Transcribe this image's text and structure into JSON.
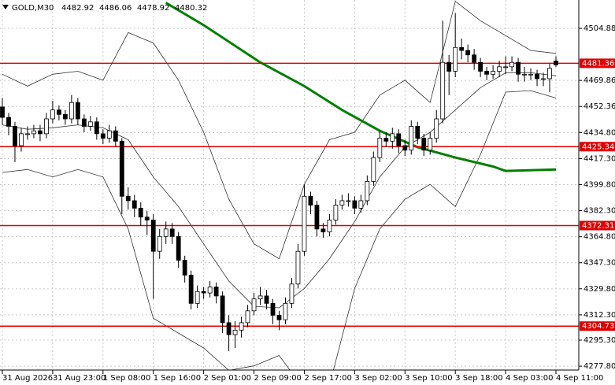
{
  "chart_data": {
    "type": "candlestick",
    "symbol": "GOLD,M30",
    "categories": [
      "31 Aug 2026",
      null,
      null,
      null,
      null,
      null,
      null,
      null,
      "31 Aug 23:00",
      null,
      null,
      null,
      null,
      null,
      null,
      null,
      "1 Sep 08:00",
      null,
      null,
      null,
      null,
      null,
      null,
      null,
      "1 Sep 16:00",
      null,
      null,
      null,
      null,
      null,
      null,
      null,
      "2 Sep 01:00",
      null,
      null,
      null,
      null,
      null,
      null,
      null,
      "2 Sep 09:00",
      null,
      null,
      null,
      null,
      null,
      null,
      null,
      "2 Sep 17:00",
      null,
      null,
      null,
      null,
      null,
      null,
      null,
      "3 Sep 02:00",
      null,
      null,
      null,
      null,
      null,
      null,
      null,
      "3 Sep 10:00",
      null,
      null,
      null,
      null,
      null,
      null,
      null,
      "3 Sep 18:00",
      null,
      null,
      null,
      null,
      null,
      null,
      null,
      "4 Sep 03:00",
      null,
      null,
      null,
      null,
      null,
      null,
      null,
      "4 Sep 11:00"
    ],
    "open": [
      4452,
      4445,
      4439,
      4426,
      4434,
      4434,
      4436,
      4434,
      4444,
      4450,
      4447,
      4444,
      4455,
      4444,
      4439,
      4442,
      4434,
      4431,
      4436,
      4429,
      4392,
      4389,
      4384,
      4378,
      4376,
      4355,
      4365,
      4370,
      4365,
      4349,
      4339,
      4320,
      4328,
      4327,
      4331,
      4325,
      4307,
      4299,
      4302,
      4307,
      4315,
      4323,
      4325,
      4320,
      4312,
      4309,
      4320,
      4333,
      4355,
      4392,
      4386,
      4370,
      4368,
      4376,
      4386,
      4389,
      4389,
      4384,
      4389,
      4402,
      4418,
      4431,
      4429,
      4434,
      4426,
      4423,
      4439,
      4431,
      4423,
      4431,
      4444,
      4482,
      4476,
      4492,
      4490,
      4487,
      4482,
      4476,
      4474,
      4476,
      4479,
      4479,
      4482,
      4474,
      4474,
      4474,
      4471,
      4471,
      4482.92
    ],
    "high": [
      4458,
      4448,
      4442,
      4438,
      4439,
      4440,
      4440,
      4448,
      4456,
      4453,
      4450,
      4460,
      4458,
      4447,
      4446,
      4445,
      4437,
      4440,
      4439,
      4431,
      4398,
      4393,
      4388,
      4382,
      4380,
      4370,
      4375,
      4374,
      4368,
      4352,
      4342,
      4332,
      4331,
      4335,
      4334,
      4328,
      4312,
      4308,
      4311,
      4319,
      4327,
      4331,
      4329,
      4323,
      4315,
      4324,
      4337,
      4360,
      4400,
      4395,
      4389,
      4374,
      4380,
      4390,
      4393,
      4394,
      4392,
      4393,
      4406,
      4422,
      4436,
      4435,
      4438,
      4437,
      4430,
      4443,
      4442,
      4434,
      4435,
      4450,
      4510,
      4487,
      4515,
      4498,
      4494,
      4491,
      4485,
      4479,
      4480,
      4483,
      4486,
      4486,
      4485,
      4479,
      4478,
      4477,
      4475,
      4481,
      4486.06
    ],
    "low": [
      4440,
      4433,
      4415,
      4422,
      4430,
      4431,
      4429,
      4431,
      4441,
      4443,
      4440,
      4441,
      4440,
      4435,
      4436,
      4430,
      4427,
      4428,
      4425,
      4380,
      4383,
      4378,
      4372,
      4366,
      4323,
      4350,
      4360,
      4360,
      4344,
      4334,
      4316,
      4317,
      4323,
      4324,
      4320,
      4300,
      4288,
      4290,
      4297,
      4304,
      4312,
      4319,
      4316,
      4306,
      4302,
      4306,
      4317,
      4330,
      4352,
      4380,
      4365,
      4364,
      4365,
      4373,
      4383,
      4385,
      4380,
      4381,
      4386,
      4399,
      4415,
      4425,
      4424,
      4421,
      4419,
      4420,
      4427,
      4419,
      4420,
      4428,
      4441,
      4460,
      4472,
      4484,
      4482,
      4477,
      4472,
      4470,
      4471,
      4472,
      4474,
      4476,
      4469,
      4469,
      4470,
      4466,
      4466,
      4462,
      4478.92
    ],
    "close": [
      4445,
      4439,
      4426,
      4434,
      4434,
      4436,
      4434,
      4444,
      4450,
      4447,
      4444,
      4455,
      4444,
      4439,
      4442,
      4434,
      4431,
      4436,
      4429,
      4392,
      4389,
      4384,
      4378,
      4376,
      4355,
      4365,
      4370,
      4365,
      4349,
      4339,
      4320,
      4328,
      4327,
      4331,
      4325,
      4307,
      4299,
      4302,
      4307,
      4315,
      4323,
      4325,
      4320,
      4312,
      4309,
      4320,
      4333,
      4355,
      4392,
      4386,
      4370,
      4368,
      4376,
      4386,
      4389,
      4389,
      4384,
      4389,
      4402,
      4418,
      4431,
      4429,
      4434,
      4426,
      4423,
      4439,
      4431,
      4423,
      4431,
      4444,
      4482,
      4476,
      4492,
      4490,
      4487,
      4482,
      4476,
      4474,
      4476,
      4479,
      4479,
      4482,
      4474,
      4474,
      4474,
      4471,
      4471,
      4478,
      4480.32
    ],
    "bands": {
      "x": [
        0,
        4,
        8,
        12,
        16,
        20,
        24,
        28,
        32,
        36,
        40,
        44,
        48,
        52,
        56,
        60,
        64,
        68,
        72,
        76,
        80,
        84,
        88
      ],
      "upper": [
        4474,
        4466,
        4474,
        4476,
        4470,
        4502,
        4495,
        4470,
        4435,
        4390,
        4360,
        4350,
        4400,
        4430,
        4435,
        4460,
        4470,
        4455,
        4523,
        4510,
        4500,
        4490,
        4488
      ],
      "middle": [
        4440,
        4437,
        4438,
        4440,
        4438,
        4430,
        4405,
        4385,
        4360,
        4335,
        4318,
        4317,
        4330,
        4350,
        4375,
        4405,
        4425,
        4435,
        4450,
        4465,
        4475,
        4475,
        4473
      ],
      "lower": [
        4408,
        4410,
        4405,
        4410,
        4405,
        4370,
        4310,
        4300,
        4290,
        4275,
        4278,
        4285,
        4262,
        4265,
        4330,
        4370,
        4390,
        4400,
        4385,
        4420,
        4462,
        4463,
        4458
      ],
      "color": "#333333"
    },
    "ma": {
      "x": [
        26,
        32,
        41,
        48,
        54,
        60,
        66,
        72,
        78,
        80,
        88
      ],
      "values": [
        4522,
        4507,
        4482,
        4466,
        4450,
        4436,
        4425,
        4418,
        4412,
        4409,
        4410
      ],
      "color": "#008000"
    },
    "levels": [
      4481.36,
      4425.34,
      4372.31,
      4304.73
    ],
    "level_color": "#e00000",
    "ylim": [
      4275.2,
      4523.9
    ],
    "yticks": [
      4504.88,
      4469.86,
      4452.36,
      {
        "value": 4434.8,
        "label": "4434.80"
      },
      {
        "value": 4417.3,
        "label": "4417.30"
      },
      {
        "value": 4399.8,
        "label": "4399.80"
      },
      {
        "value": 4382.3,
        "label": "4382.30"
      },
      {
        "value": 4364.8,
        "label": "4364.80"
      },
      {
        "value": 4347.3,
        "label": "4347.30"
      },
      {
        "value": 4329.8,
        "label": "4329.80"
      },
      {
        "value": 4312.3,
        "label": "4312.30"
      },
      {
        "value": 4295.3,
        "label": "4295.30"
      },
      {
        "value": 4277.8,
        "label": "4277.80"
      }
    ],
    "grid": true
  }
}
